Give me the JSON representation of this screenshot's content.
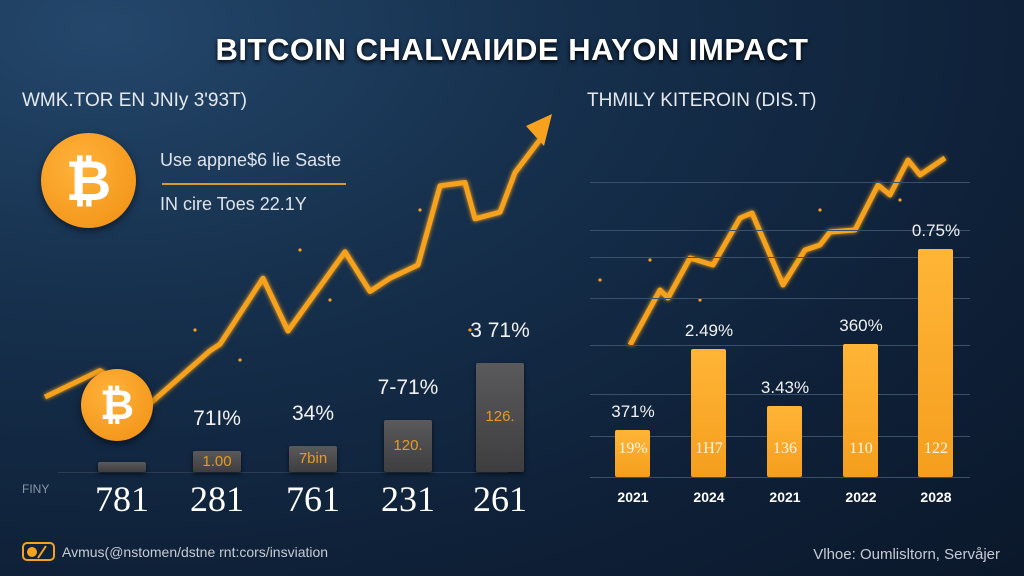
{
  "title": "BITCOIN CHALVAІИDE HAYON IMPACT",
  "left_panel": {
    "subtitle": "WMK.TOR EN JNIy 3'93T)",
    "info_line1": "Use appne$6 lie Saste",
    "info_line2": "IN cire Toes 22.1Y",
    "axis_label": "FINY",
    "coin_symbol": "₿"
  },
  "right_panel": {
    "subtitle": "THMILY KITEROIN (DIS.T)"
  },
  "footer": {
    "left_text": "Avmus(@nstomen/dstne rnt:cors/insviation",
    "right_text": "Vlhoe: Oumlisltorn, Servåjer"
  },
  "colors": {
    "accent": "#f7a21e",
    "bg": "#0e1f36"
  },
  "chart_data": [
    {
      "type": "bar",
      "title": "WMK.TOR EN JNIy 3'93T)",
      "categories": [
        "781",
        "281",
        "761",
        "231",
        "261"
      ],
      "values": [
        2,
        4,
        5,
        10,
        21
      ],
      "top_labels": [
        "",
        "71I%",
        "34%",
        "7-71%",
        "3 71%"
      ],
      "inner_labels": [
        "",
        "1.00",
        "7bin",
        "120.",
        "126."
      ],
      "trend_line": [
        10,
        18,
        8,
        24,
        26,
        46,
        30,
        54,
        42,
        46,
        50,
        74,
        75,
        64,
        66,
        78,
        88
      ]
    },
    {
      "type": "bar",
      "title": "THMILY KITEROIN (DIS.T)",
      "categories": [
        "2021",
        "2024",
        "2021",
        "2022",
        "2028"
      ],
      "values": [
        47,
        128,
        71,
        133,
        228
      ],
      "top_labels": [
        "371%",
        "2.49%",
        "3.43%",
        "360%",
        "0.75%"
      ],
      "inner_labels": [
        "19%",
        "1H7",
        "136",
        "110",
        "122"
      ],
      "trend_line": [
        132,
        187,
        179,
        219,
        212,
        259,
        264,
        192,
        227,
        232,
        245,
        247,
        292,
        282,
        317,
        302,
        319
      ]
    }
  ]
}
